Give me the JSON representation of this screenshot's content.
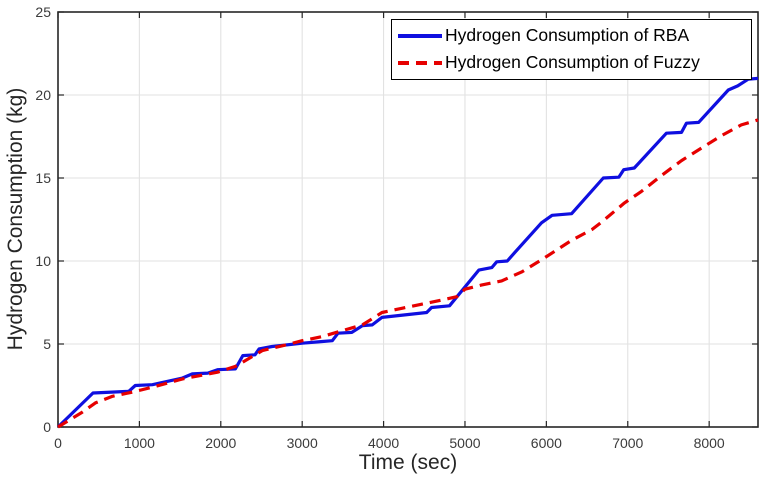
{
  "colors": {
    "background": "#ffffff",
    "axis": "#262626",
    "grid": "#e2e2e2",
    "tick_label": "#3b3b3b",
    "rba_line": "#0f0fe0",
    "fuzzy_line": "#e60000"
  },
  "legend": {
    "items": [
      {
        "label": "Hydrogen Consumption of RBA",
        "style": "solid",
        "color": "#0f0fe0"
      },
      {
        "label": "Hydrogen Consumption of Fuzzy",
        "style": "dashed",
        "color": "#e60000"
      }
    ]
  },
  "chart_data": {
    "type": "line",
    "title": "",
    "xlabel": "Time (sec)",
    "ylabel": "Hydrogen Consumption (kg)",
    "xlim": [
      0,
      8600
    ],
    "ylim": [
      0,
      25
    ],
    "xticks": [
      0,
      1000,
      2000,
      3000,
      4000,
      5000,
      6000,
      7000,
      8000
    ],
    "yticks": [
      0,
      5,
      10,
      15,
      20,
      25
    ],
    "grid": true,
    "legend_position": "top-right",
    "series": [
      {
        "name": "Hydrogen Consumption of RBA",
        "color": "#0f0fe0",
        "style": "solid",
        "x": [
          0,
          430,
          870,
          950,
          1160,
          1530,
          1650,
          1840,
          1960,
          2180,
          2270,
          2420,
          2470,
          2630,
          3000,
          3250,
          3370,
          3440,
          3610,
          3740,
          3860,
          3980,
          4530,
          4590,
          4810,
          5170,
          5330,
          5390,
          5520,
          5610,
          5940,
          6070,
          6310,
          6700,
          6890,
          6950,
          7080,
          7475,
          7660,
          7720,
          7870,
          8235,
          8350,
          8480,
          8600
        ],
        "y": [
          0,
          2.05,
          2.15,
          2.5,
          2.55,
          2.95,
          3.2,
          3.25,
          3.45,
          3.5,
          4.3,
          4.35,
          4.7,
          4.85,
          5.05,
          5.15,
          5.2,
          5.65,
          5.7,
          6.1,
          6.15,
          6.6,
          6.9,
          7.2,
          7.3,
          9.45,
          9.6,
          9.95,
          10.0,
          10.5,
          12.3,
          12.75,
          12.85,
          15.0,
          15.05,
          15.5,
          15.6,
          17.7,
          17.75,
          18.3,
          18.35,
          20.3,
          20.55,
          20.95,
          21.0
        ]
      },
      {
        "name": "Hydrogen Consumption of Fuzzy",
        "color": "#e60000",
        "style": "dashed",
        "x": [
          0,
          300,
          460,
          670,
          915,
          1160,
          1530,
          1960,
          2180,
          2510,
          2760,
          3000,
          3250,
          3490,
          3740,
          3980,
          4225,
          4470,
          4715,
          4900,
          5000,
          5200,
          5450,
          5700,
          5950,
          6310,
          6560,
          6680,
          6960,
          7170,
          7415,
          7660,
          7905,
          8150,
          8395,
          8600
        ],
        "y": [
          0,
          0.9,
          1.45,
          1.85,
          2.1,
          2.4,
          2.9,
          3.3,
          3.65,
          4.6,
          4.9,
          5.2,
          5.45,
          5.8,
          6.15,
          6.9,
          7.15,
          7.4,
          7.65,
          7.85,
          8.3,
          8.55,
          8.8,
          9.35,
          10.1,
          11.25,
          11.9,
          12.35,
          13.5,
          14.2,
          15.15,
          16.05,
          16.8,
          17.55,
          18.2,
          18.5
        ]
      }
    ]
  }
}
